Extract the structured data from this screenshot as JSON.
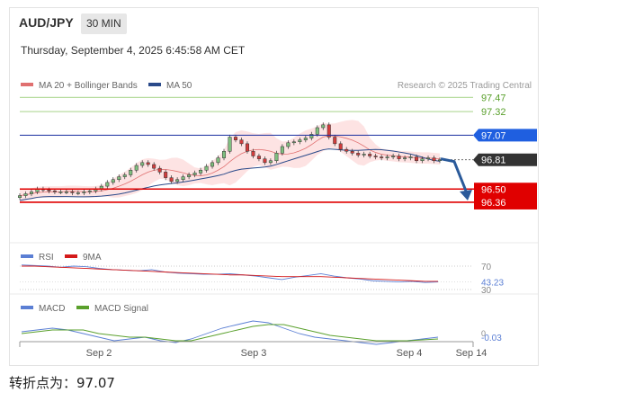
{
  "header": {
    "pair": "AUD/JPY",
    "timeframe": "30 MIN",
    "timestamp": "Thursday, September 4, 2025 6:45:58 AM CET"
  },
  "footer": {
    "pivot_text": "转折点为：97.07"
  },
  "colors": {
    "green_level": "#b8dca0",
    "green_text": "#5aa02c",
    "blue_level": "#1a2fa0",
    "blue_tag": "#1f5fe0",
    "dark_tag": "#333333",
    "red_level": "#e00000",
    "arrow": "#2a5a9a",
    "bull": "#7fbf7f",
    "bear": "#d23c3c",
    "ma20": "#e07070",
    "ma50": "#2a4a8a",
    "band_fill": "#fde0e0",
    "rsi": "#5b7fd4",
    "rsi_ma": "#d41a1a",
    "macd": "#5b7fd4",
    "macd_signal": "#5aa02c"
  },
  "chart_data": [
    {
      "type": "candlestick",
      "title": "",
      "legend": [
        {
          "name": "MA 20 + Bollinger Bands",
          "color": "#e07070"
        },
        {
          "name": "MA 50",
          "color": "#2a4a8a"
        }
      ],
      "credit": "Research © 2025 Trading Central",
      "x_ticks": [
        "Sep 2",
        "Sep 3",
        "Sep 4",
        "Sep 14"
      ],
      "ylim": [
        95.95,
        97.55
      ],
      "levels": [
        {
          "value": 97.47,
          "label": "97.47",
          "kind": "resistance-2"
        },
        {
          "value": 97.32,
          "label": "97.32",
          "kind": "resistance-1"
        },
        {
          "value": 97.07,
          "label": "97.07",
          "kind": "pivot"
        },
        {
          "value": 96.81,
          "label": "96.81",
          "kind": "last-price"
        },
        {
          "value": 96.5,
          "label": "96.50",
          "kind": "target-1"
        },
        {
          "value": 96.36,
          "label": "96.36",
          "kind": "target-2"
        }
      ],
      "closes": [
        96.43,
        96.45,
        96.47,
        96.5,
        96.49,
        96.48,
        96.47,
        96.47,
        96.47,
        96.46,
        96.46,
        96.47,
        96.48,
        96.5,
        96.53,
        96.57,
        96.6,
        96.63,
        96.65,
        96.7,
        96.75,
        96.78,
        96.76,
        96.72,
        96.68,
        96.62,
        96.58,
        96.6,
        96.63,
        96.65,
        96.67,
        96.7,
        96.74,
        96.78,
        96.83,
        96.9,
        97.05,
        97.02,
        96.98,
        96.9,
        96.85,
        96.82,
        96.78,
        96.8,
        96.88,
        96.95,
        96.99,
        97.0,
        97.02,
        97.04,
        97.08,
        97.15,
        97.18,
        97.05,
        96.98,
        96.92,
        96.9,
        96.88,
        96.86,
        96.87,
        96.85,
        96.84,
        96.83,
        96.84,
        96.85,
        96.82,
        96.83,
        96.84,
        96.8,
        96.82,
        96.83,
        96.8,
        96.81
      ],
      "forecast": [
        97.07,
        96.82,
        96.5,
        96.36
      ]
    },
    {
      "type": "line",
      "name": "RSI",
      "legend": [
        {
          "name": "RSI",
          "color": "#5b7fd4"
        },
        {
          "name": "9MA",
          "color": "#d41a1a"
        }
      ],
      "levels": [
        70,
        30
      ],
      "current_value": "43.23",
      "series": [
        {
          "name": "RSI",
          "values": [
            72,
            71,
            70,
            68,
            70,
            69,
            66,
            64,
            63,
            62,
            64,
            60,
            58,
            57,
            56,
            56,
            57,
            55,
            53,
            50,
            47,
            51,
            54,
            57,
            53,
            50,
            48,
            45,
            44,
            43,
            44,
            42,
            43
          ]
        },
        {
          "name": "9MA",
          "values": [
            70,
            70,
            69,
            68,
            67,
            66,
            65,
            64,
            63,
            62,
            61,
            60,
            59,
            58,
            57,
            56,
            55,
            55,
            54,
            53,
            52,
            52,
            52,
            52,
            51,
            50,
            49,
            48,
            47,
            46,
            45,
            44,
            44
          ]
        }
      ]
    },
    {
      "type": "line",
      "name": "MACD",
      "legend": [
        {
          "name": "MACD",
          "color": "#5b7fd4"
        },
        {
          "name": "MACD Signal",
          "color": "#5aa02c"
        }
      ],
      "zero_label": "0",
      "current_value": "-0.03",
      "series": [
        {
          "name": "MACD",
          "values": [
            0.01,
            0.02,
            0.03,
            0.02,
            0.0,
            -0.02,
            -0.04,
            -0.03,
            -0.02,
            -0.04,
            -0.05,
            -0.03,
            0.0,
            0.03,
            0.05,
            0.07,
            0.06,
            0.03,
            0.0,
            -0.02,
            -0.03,
            -0.04,
            -0.05,
            -0.06,
            -0.05,
            -0.04,
            -0.03,
            -0.02
          ]
        },
        {
          "name": "MACD Signal",
          "values": [
            0.0,
            0.01,
            0.02,
            0.02,
            0.02,
            0.0,
            -0.01,
            -0.02,
            -0.02,
            -0.03,
            -0.04,
            -0.04,
            -0.02,
            0.0,
            0.02,
            0.04,
            0.05,
            0.05,
            0.03,
            0.01,
            -0.01,
            -0.02,
            -0.03,
            -0.04,
            -0.04,
            -0.04,
            -0.035,
            -0.03
          ]
        }
      ]
    }
  ]
}
